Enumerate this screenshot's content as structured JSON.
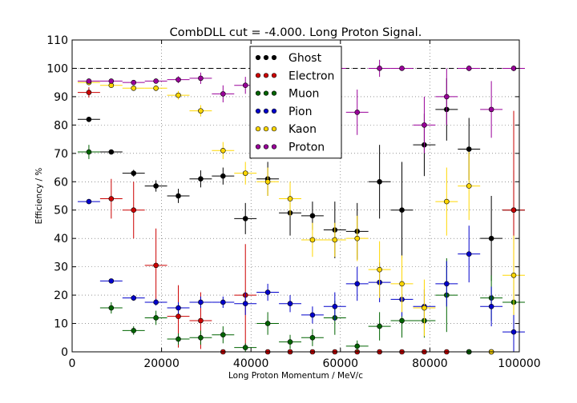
{
  "chart_data": {
    "type": "scatter",
    "title": "CombDLL cut = -4.000. Long Proton Signal.",
    "xlabel": "Long Proton Momentum / MeV/c",
    "ylabel": "Efficiency / %",
    "xlim": [
      0,
      100000
    ],
    "ylim": [
      0,
      110
    ],
    "x_ticks": [
      0,
      20000,
      40000,
      60000,
      80000,
      100000
    ],
    "x_tick_labels": [
      "0",
      "20000",
      "40000",
      "60000",
      "80000",
      "100000"
    ],
    "y_ticks": [
      0,
      10,
      20,
      30,
      40,
      50,
      60,
      70,
      80,
      90,
      100,
      110
    ],
    "y_tick_labels": [
      "0",
      "10",
      "20",
      "30",
      "40",
      "50",
      "60",
      "70",
      "80",
      "90",
      "100",
      "110"
    ],
    "grid": true,
    "reference_line": 100,
    "legend_position": "top-center",
    "x": [
      3750,
      8750,
      13750,
      18750,
      23750,
      28750,
      33750,
      38750,
      43750,
      48750,
      53750,
      58750,
      63750,
      68750,
      73750,
      78750,
      83750,
      88750,
      93750,
      98750
    ],
    "x_bin_halfwidth": 2500,
    "series": [
      {
        "name": "Ghost",
        "color": "#000000",
        "values": [
          82,
          70.5,
          63,
          58.5,
          55,
          61,
          62,
          47,
          61,
          49,
          48,
          43,
          42.5,
          60,
          50,
          73,
          85.5,
          71.5,
          40,
          50
        ],
        "errors": [
          0.7,
          0.8,
          1.2,
          2,
          2.5,
          3,
          3,
          5.5,
          6,
          8,
          5,
          10,
          10,
          13,
          17,
          11,
          11,
          11,
          15,
          14
        ]
      },
      {
        "name": "Electron",
        "color": "#cc0000",
        "values": [
          91.5,
          54,
          50,
          30.5,
          12.5,
          11,
          0,
          20,
          0,
          0,
          0,
          0,
          0,
          0,
          0,
          0,
          0,
          0,
          0,
          50
        ],
        "errors": [
          1.8,
          7,
          10,
          13,
          11,
          10,
          0,
          18,
          0,
          0,
          0,
          0,
          0,
          0,
          0,
          0,
          0,
          0,
          0,
          35
        ]
      },
      {
        "name": "Muon",
        "color": "#006400",
        "values": [
          70.5,
          15.5,
          7.5,
          12,
          4.5,
          5,
          6,
          1.5,
          10,
          3.5,
          5,
          12,
          2,
          9,
          11,
          11,
          20,
          0,
          19,
          17.5
        ],
        "errors": [
          2.5,
          2,
          1.5,
          2.5,
          2,
          2.5,
          3,
          1.5,
          4,
          2.5,
          3,
          6,
          2,
          5,
          6,
          6,
          13,
          0,
          8,
          10
        ]
      },
      {
        "name": "Pion",
        "color": "#0000cc",
        "values": [
          53,
          25,
          19,
          17.5,
          15.5,
          17.5,
          17.5,
          17,
          21,
          17,
          13,
          16,
          24,
          24.5,
          18.5,
          16,
          24,
          34.5,
          16,
          7
        ],
        "errors": [
          0.4,
          0.6,
          1,
          1.2,
          2,
          2,
          2,
          4,
          3,
          3,
          3,
          5,
          6,
          7,
          6,
          6,
          8,
          10,
          7,
          7
        ]
      },
      {
        "name": "Kaon",
        "color": "#ffd700",
        "values": [
          95,
          94,
          93,
          93,
          90.5,
          85,
          71,
          63,
          60,
          54,
          39.5,
          39.5,
          40,
          29,
          24,
          15.5,
          53,
          58.5,
          0,
          27
        ],
        "errors": [
          0.5,
          0.6,
          0.8,
          1,
          1.5,
          2,
          3,
          4,
          5,
          6,
          6,
          6,
          8,
          10,
          10,
          10,
          12,
          12,
          0,
          14
        ]
      },
      {
        "name": "Proton",
        "color": "#990099",
        "values": [
          95.5,
          95.5,
          95,
          95.5,
          96,
          96.5,
          91,
          94,
          100,
          100,
          100,
          100,
          84.5,
          100,
          100,
          80,
          90,
          100,
          85.5,
          100
        ],
        "errors": [
          0.4,
          0.4,
          0.6,
          0.8,
          1.2,
          2,
          3,
          3,
          0,
          0,
          0,
          0,
          8,
          3,
          0.5,
          10,
          10,
          1,
          10,
          1
        ]
      }
    ]
  }
}
